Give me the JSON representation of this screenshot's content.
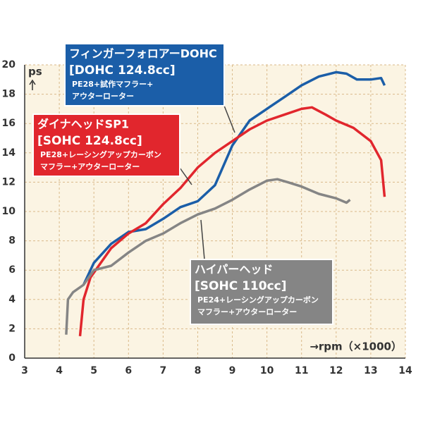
{
  "chart_data": {
    "type": "line",
    "ylabel": "ps",
    "xlabel": "→rpm（×1000）",
    "xlim": [
      3,
      14
    ],
    "xticks": [
      3,
      4,
      5,
      6,
      7,
      8,
      9,
      10,
      11,
      12,
      13,
      14
    ],
    "ylim": [
      0,
      20
    ],
    "yticks": [
      0,
      2,
      4,
      6,
      8,
      10,
      12,
      14,
      16,
      18,
      20
    ],
    "grid": true,
    "series": [
      {
        "name": "フィンガーフォロアーDOHC",
        "spec": "[DOHC 124.8cc]",
        "note": [
          "PE28+試作マフラー+",
          "アウターローター"
        ],
        "color": "#1b5ea8",
        "x": [
          4.7,
          5,
          5.5,
          6,
          6.5,
          7,
          7.5,
          8,
          8.5,
          9,
          9.5,
          10,
          10.5,
          11,
          11.5,
          12,
          12.3,
          12.6,
          13,
          13.3,
          13.4
        ],
        "values": [
          5.0,
          6.5,
          7.8,
          8.6,
          8.8,
          9.5,
          10.3,
          10.7,
          11.8,
          14.5,
          16.2,
          17.0,
          17.8,
          18.6,
          19.2,
          19.5,
          19.4,
          19.0,
          19.0,
          19.1,
          18.6
        ]
      },
      {
        "name": "ダイナヘッドSP1",
        "spec": "[SOHC 124.8cc]",
        "note": [
          "PE28+レーシングアップカーボン",
          "マフラー+アウターローター"
        ],
        "color": "#e1262d",
        "x": [
          4.6,
          4.7,
          4.9,
          5.2,
          5.5,
          6,
          6.5,
          7,
          7.5,
          8,
          8.5,
          9,
          9.5,
          10,
          10.5,
          11,
          11.3,
          11.7,
          12,
          12.5,
          13,
          13.3,
          13.4
        ],
        "values": [
          1.5,
          4.0,
          5.5,
          6.5,
          7.5,
          8.5,
          9.2,
          10.5,
          11.6,
          13.0,
          14.0,
          14.8,
          15.6,
          16.2,
          16.6,
          17.0,
          17.1,
          16.6,
          16.2,
          15.7,
          14.8,
          13.5,
          11.0
        ]
      },
      {
        "name": "ハイパーヘッド",
        "spec": "[SOHC 110cc]",
        "note": [
          "PE24+レーシングアップカーボン",
          "マフラー+アウターローター"
        ],
        "color": "#858585",
        "x": [
          4.2,
          4.25,
          4.4,
          4.7,
          5,
          5.5,
          6,
          6.5,
          7,
          7.5,
          8,
          8.5,
          9,
          9.5,
          10,
          10.3,
          10.6,
          11,
          11.5,
          12,
          12.3,
          12.4
        ],
        "values": [
          1.6,
          4.0,
          4.5,
          5.0,
          6.0,
          6.3,
          7.2,
          8.0,
          8.5,
          9.2,
          9.8,
          10.2,
          10.8,
          11.5,
          12.1,
          12.2,
          12.0,
          11.7,
          11.2,
          10.9,
          10.6,
          10.8
        ]
      }
    ]
  }
}
